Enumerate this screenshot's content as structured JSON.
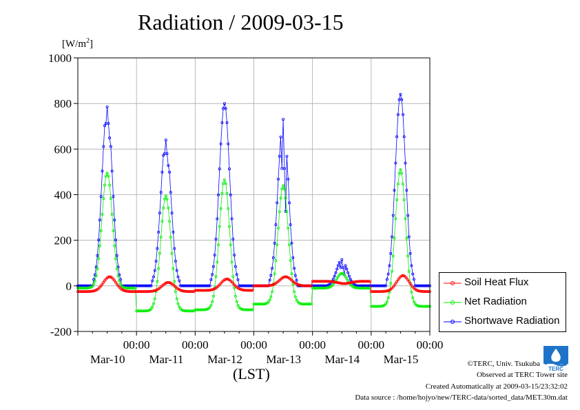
{
  "title": "Radiation / 2009-03-15",
  "unit_label": "[W/m",
  "unit_sup": "2",
  "unit_close": "]",
  "xlabel": "(LST)",
  "legend": [
    {
      "name": "Soil Heat Flux",
      "color": "#ff0000"
    },
    {
      "name": "Net Radiation",
      "color": "#00ee00"
    },
    {
      "name": "Shortwave Radiation",
      "color": "#0000ff"
    }
  ],
  "credits": {
    "copyright": "©TERC, Univ. Tsukuba",
    "site": "Observed at TERC Tower site",
    "created": "Created Automatically at 2009-03-15/23:32:02",
    "source": "Data source : /home/hojyo/new/TERC-data/sorted_data/MET.30m.dat"
  },
  "logo_icon": "terc-logo-icon",
  "chart_data": {
    "type": "line",
    "ylim": [
      -200,
      1000
    ],
    "yticks": [
      -200,
      0,
      200,
      400,
      600,
      800,
      1000
    ],
    "xlim": [
      0,
      144
    ],
    "xticks": [
      {
        "x": 24,
        "time": "00:00",
        "date": "Mar-10"
      },
      {
        "x": 48,
        "time": "00:00",
        "date": "Mar-11"
      },
      {
        "x": 72,
        "time": "00:00",
        "date": "Mar-12"
      },
      {
        "x": 96,
        "time": "00:00",
        "date": "Mar-13"
      },
      {
        "x": 120,
        "time": "00:00",
        "date": "Mar-14"
      },
      {
        "x": 144,
        "time": "00:00",
        "date": "Mar-15"
      }
    ],
    "grid": true,
    "legend_position": "right",
    "series": [
      {
        "name": "Shortwave Radiation",
        "color": "#0000ff",
        "days": [
          {
            "peak": 785,
            "dip": 640
          },
          {
            "peak": 640,
            "dip": 520
          },
          {
            "peak": 800,
            "dip": 780
          },
          {
            "peak": 730,
            "dip": 300
          },
          {
            "peak": 115,
            "dip": 45
          },
          {
            "peak": 840,
            "dip": 830
          }
        ]
      },
      {
        "name": "Net Radiation",
        "color": "#00ee00",
        "days": [
          {
            "peak": 495,
            "night": -10
          },
          {
            "peak": 395,
            "night": -110
          },
          {
            "peak": 465,
            "night": -105
          },
          {
            "peak": 440,
            "night": -80
          },
          {
            "peak": 55,
            "night": -10
          },
          {
            "peak": 510,
            "night": -90
          }
        ]
      },
      {
        "name": "Soil Heat Flux",
        "color": "#ff0000",
        "days": [
          {
            "peak": 40,
            "night": -25
          },
          {
            "peak": 15,
            "night": -25
          },
          {
            "peak": 30,
            "night": -20
          },
          {
            "peak": 40,
            "night": 0
          },
          {
            "peak": 10,
            "night": 20
          },
          {
            "peak": 45,
            "night": -25
          }
        ]
      }
    ]
  }
}
